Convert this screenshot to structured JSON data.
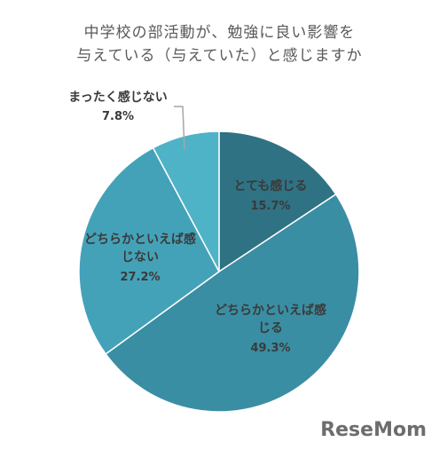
{
  "chart_data": {
    "type": "pie",
    "title": [
      "中学校の部活動が、勉強に良い影響を",
      "与えている（与えていた）と感じますか"
    ],
    "categories": [
      "とても感じる",
      "どちらかといえば感じる",
      "どちらかといえば感じない",
      "まったく感じない"
    ],
    "values": [
      15.7,
      49.3,
      27.2,
      7.8
    ],
    "value_labels": [
      "15.7%",
      "49.3%",
      "27.2%",
      "7.8%"
    ],
    "colors": [
      "#2f7283",
      "#3a8ea3",
      "#44a2b8",
      "#4fb3c7"
    ],
    "watermark": "ReseMom"
  }
}
